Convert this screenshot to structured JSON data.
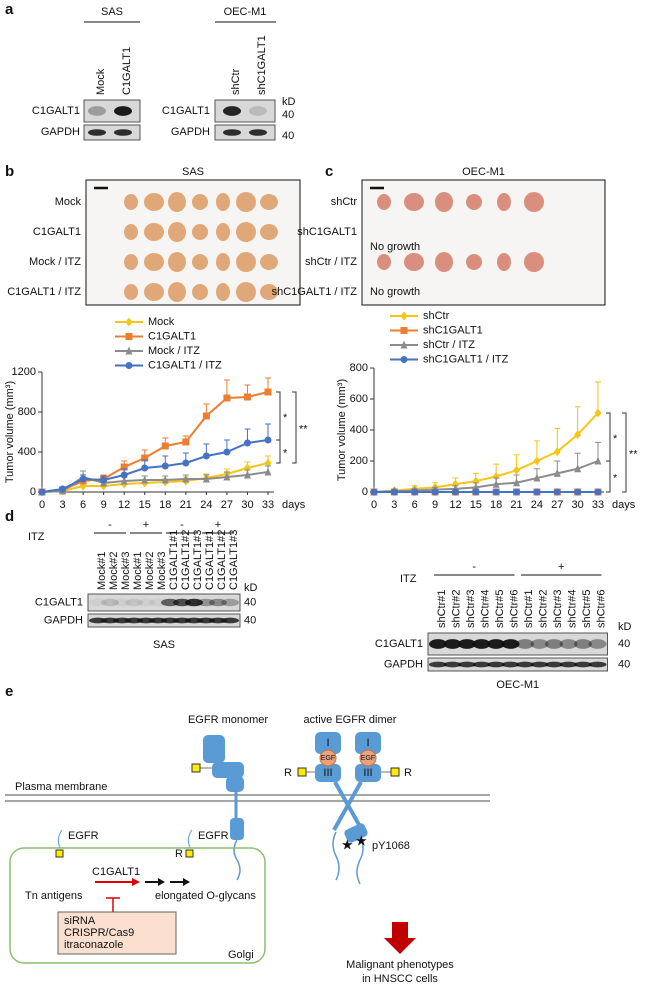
{
  "panel_labels": [
    "a",
    "b",
    "c",
    "d",
    "e"
  ],
  "a": {
    "left": {
      "cell_line": "SAS",
      "lanes": [
        "Mock",
        "C1GALT1"
      ],
      "rows": [
        "C1GALT1",
        "GAPDH"
      ]
    },
    "right": {
      "cell_line": "OEC-M1",
      "lanes": [
        "shCtr",
        "shC1GALT1"
      ],
      "rows": [
        "C1GALT1",
        "GAPDH"
      ],
      "unit": "kD",
      "markers": [
        40,
        40
      ]
    }
  },
  "photos": [
    {
      "title": "SAS",
      "rows": [
        "Mock",
        "C1GALT1",
        "Mock / ITZ",
        "C1GALT1 / ITZ"
      ]
    },
    {
      "title": "OEC-M1",
      "rows": [
        "shCtr",
        "shC1GALT1",
        "shCtr / ITZ",
        "shC1GALT1 / ITZ"
      ],
      "notes": [
        "No growth",
        "No growth"
      ]
    }
  ],
  "chart_data": [
    {
      "type": "line",
      "y_label": "Tumor volume (mm³)",
      "x_unit": "days",
      "x": [
        0,
        3,
        6,
        9,
        12,
        15,
        18,
        21,
        24,
        27,
        30,
        33
      ],
      "xlim": [
        0,
        33
      ],
      "xticks": [
        0,
        3,
        6,
        9,
        12,
        15,
        18,
        21,
        24,
        27,
        30,
        33
      ],
      "ylim": [
        0,
        1200
      ],
      "yticks": [
        0,
        400,
        800,
        1200
      ],
      "significance": [
        "*",
        "**",
        "*"
      ],
      "series": [
        {
          "name": "Mock",
          "color": "#f5c518",
          "marker": "diamond",
          "values": [
            0,
            10,
            60,
            60,
            80,
            90,
            100,
            110,
            140,
            180,
            240,
            290
          ],
          "errors": [
            0,
            10,
            20,
            20,
            30,
            30,
            30,
            40,
            40,
            50,
            60,
            70
          ]
        },
        {
          "name": "C1GALT1",
          "color": "#ed7d31",
          "marker": "square",
          "values": [
            0,
            20,
            110,
            130,
            250,
            340,
            460,
            500,
            760,
            940,
            950,
            1000
          ],
          "errors": [
            0,
            20,
            60,
            40,
            60,
            80,
            80,
            60,
            120,
            180,
            120,
            140
          ]
        },
        {
          "name": "Mock / ITZ",
          "color": "#8c8c8c",
          "marker": "triangle",
          "values": [
            0,
            10,
            150,
            90,
            110,
            120,
            120,
            130,
            130,
            150,
            170,
            200
          ],
          "errors": [
            0,
            10,
            60,
            40,
            40,
            40,
            40,
            40,
            40,
            50,
            50,
            60
          ]
        },
        {
          "name": "C1GALT1 / ITZ",
          "color": "#4472c4",
          "marker": "circle",
          "values": [
            0,
            30,
            130,
            120,
            170,
            240,
            260,
            290,
            360,
            400,
            490,
            520
          ],
          "errors": [
            0,
            20,
            40,
            40,
            60,
            80,
            100,
            100,
            120,
            120,
            140,
            160
          ]
        }
      ]
    },
    {
      "type": "line",
      "y_label": "Tumor volume (mm³)",
      "x_unit": "days",
      "x": [
        0,
        3,
        6,
        9,
        12,
        15,
        18,
        21,
        24,
        27,
        30,
        33
      ],
      "xlim": [
        0,
        33
      ],
      "xticks": [
        0,
        3,
        6,
        9,
        12,
        15,
        18,
        21,
        24,
        27,
        30,
        33
      ],
      "ylim": [
        0,
        800
      ],
      "yticks": [
        0,
        200,
        400,
        600,
        800
      ],
      "significance": [
        "*",
        "**",
        "*"
      ],
      "series": [
        {
          "name": "shCtr",
          "color": "#f5c518",
          "marker": "diamond",
          "values": [
            0,
            10,
            20,
            30,
            50,
            70,
            100,
            140,
            200,
            260,
            370,
            510
          ],
          "errors": [
            0,
            10,
            20,
            30,
            40,
            50,
            80,
            100,
            130,
            150,
            180,
            200
          ]
        },
        {
          "name": "shC1GALT1",
          "color": "#ed7d31",
          "marker": "square",
          "values": [
            0,
            0,
            0,
            0,
            0,
            0,
            0,
            0,
            0,
            0,
            0,
            0
          ]
        },
        {
          "name": "shCtr / ITZ",
          "color": "#8c8c8c",
          "marker": "triangle",
          "values": [
            0,
            5,
            10,
            15,
            20,
            30,
            50,
            60,
            90,
            120,
            150,
            200
          ],
          "errors": [
            0,
            5,
            10,
            15,
            20,
            30,
            40,
            50,
            60,
            80,
            100,
            120
          ]
        },
        {
          "name": "shC1GALT1 / ITZ",
          "color": "#4472c4",
          "marker": "circle",
          "values": [
            0,
            0,
            0,
            0,
            0,
            0,
            0,
            0,
            0,
            0,
            0,
            0
          ]
        }
      ]
    }
  ],
  "d": {
    "left": {
      "treatment": "ITZ",
      "groups": [
        "-",
        "+",
        "-",
        "+"
      ],
      "lanes": [
        "Mock#1",
        "Mock#2",
        "Mock#3",
        "Mock#1",
        "Mock#2",
        "Mock#3",
        "C1GALT1#1",
        "C1GALT1#2",
        "C1GALT1#3",
        "C1GALT1#1",
        "C1GALT1#2",
        "C1GALT1#3"
      ],
      "rows": [
        "C1GALT1",
        "GAPDH"
      ],
      "unit": "kD",
      "markers": [
        40,
        40
      ],
      "cell_line": "SAS"
    },
    "right": {
      "treatment": "ITZ",
      "groups": [
        "-",
        "+"
      ],
      "lanes": [
        "shCtr#1",
        "shCtr#2",
        "shCtr#3",
        "shCtr#4",
        "shCtr#5",
        "shCtr#6",
        "shCtr#1",
        "shCtr#2",
        "shCtr#3",
        "shCtr#4",
        "shCtr#5",
        "shCtr#6"
      ],
      "rows": [
        "C1GALT1",
        "GAPDH"
      ],
      "unit": "kD",
      "markers": [
        40,
        40
      ],
      "cell_line": "OEC-M1"
    }
  },
  "e": {
    "monomer_title": "EGFR monomer",
    "dimer_title": "active EGFR dimer",
    "domains": [
      "I",
      "III"
    ],
    "ligand": "EGF",
    "glycan": "R",
    "membrane": "Plasma membrane",
    "phospho": "pY1068",
    "receptor": "EGFR",
    "substrate": "Tn antigens",
    "enzyme": "C1GALT1",
    "product": "elongated O-glycans",
    "inhibitors": [
      "siRNA",
      "CRISPR/Cas9",
      "itraconazole"
    ],
    "organelle": "Golgi",
    "outcome": [
      "Malignant phenotypes",
      "in HNSCC cells"
    ]
  }
}
